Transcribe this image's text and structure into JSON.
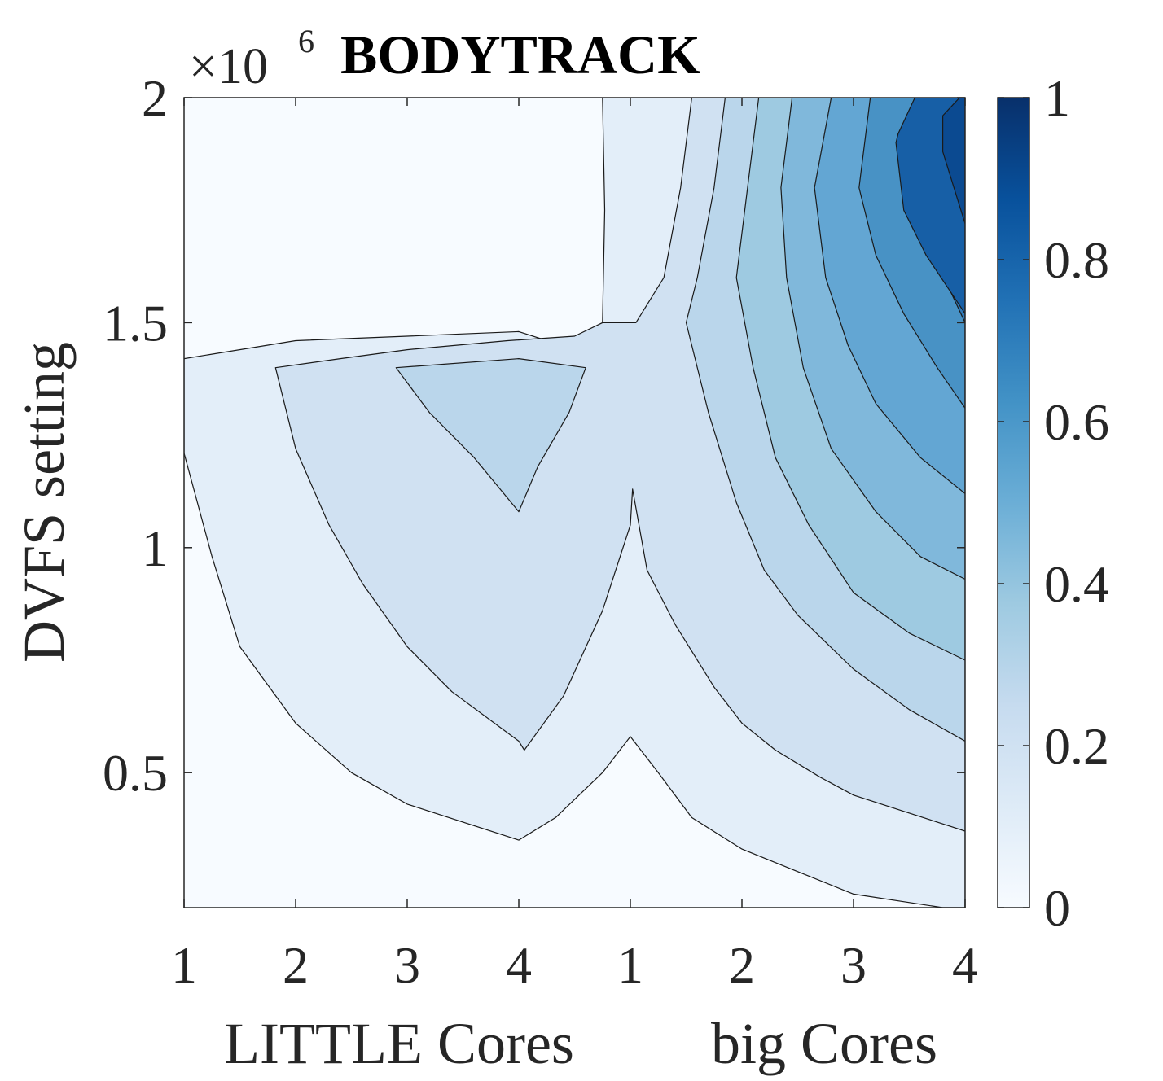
{
  "chart_data": {
    "type": "contour",
    "title": "BODYTRACK",
    "ylabel": "DVFS setting",
    "y_exponent_base": "×10",
    "y_exponent_power": "6",
    "xlabel_little": "LITTLE Cores",
    "xlabel_big": "big Cores",
    "x_ticks": [
      {
        "label": "1",
        "group": "LITTLE",
        "cores": 1
      },
      {
        "label": "2",
        "group": "LITTLE",
        "cores": 2
      },
      {
        "label": "3",
        "group": "LITTLE",
        "cores": 3
      },
      {
        "label": "4",
        "group": "LITTLE",
        "cores": 4
      },
      {
        "label": "1",
        "group": "big",
        "cores": 1
      },
      {
        "label": "2",
        "group": "big",
        "cores": 2
      },
      {
        "label": "3",
        "group": "big",
        "cores": 3
      },
      {
        "label": "4",
        "group": "big",
        "cores": 4
      }
    ],
    "xlim": [
      1,
      8
    ],
    "y_ticks": [
      {
        "value": 0.5,
        "label": "0.5"
      },
      {
        "value": 1.0,
        "label": "1"
      },
      {
        "value": 1.5,
        "label": "1.5"
      },
      {
        "value": 2.0,
        "label": "2"
      }
    ],
    "ylim": [
      0.2,
      2.0
    ],
    "colorbar": {
      "ticks": [
        {
          "value": 0,
          "label": "0"
        },
        {
          "value": 0.2,
          "label": "0.2"
        },
        {
          "value": 0.4,
          "label": "0.4"
        },
        {
          "value": 0.6,
          "label": "0.6"
        },
        {
          "value": 0.8,
          "label": "0.8"
        },
        {
          "value": 1,
          "label": "1"
        }
      ],
      "range": [
        0,
        1
      ],
      "colormap": "Blues"
    },
    "contour_levels": [
      0.1,
      0.2,
      0.3,
      0.4,
      0.5,
      0.6,
      0.7,
      0.8,
      0.9
    ],
    "regions": [
      {
        "level": 0.0,
        "color": "#f7fbff",
        "polygon": [
          [
            1,
            0.2
          ],
          [
            8,
            0.2
          ],
          [
            8,
            2.0
          ],
          [
            1,
            2.0
          ]
        ]
      },
      {
        "level": 0.1,
        "color": "#e3eef9",
        "polygon": [
          [
            1,
            1.21
          ],
          [
            1.25,
            0.98
          ],
          [
            1.5,
            0.78
          ],
          [
            2,
            0.61
          ],
          [
            2.5,
            0.5
          ],
          [
            3,
            0.43
          ],
          [
            4,
            0.35
          ],
          [
            4.33,
            0.4
          ],
          [
            4.75,
            0.5
          ],
          [
            5,
            0.58
          ],
          [
            5.25,
            0.5
          ],
          [
            5.55,
            0.4
          ],
          [
            6,
            0.33
          ],
          [
            6.5,
            0.28
          ],
          [
            7,
            0.23
          ],
          [
            7.8,
            0.2
          ],
          [
            8,
            0.2
          ],
          [
            8,
            2.0
          ],
          [
            4.75,
            2.0
          ],
          [
            4.77,
            1.75
          ],
          [
            4.75,
            1.5
          ],
          [
            4.38,
            1.45
          ],
          [
            4.0,
            1.48
          ],
          [
            3.0,
            1.47
          ],
          [
            2.0,
            1.46
          ],
          [
            1,
            1.42
          ]
        ]
      },
      {
        "level": 0.2,
        "color": "#d0e1f2",
        "polygon": [
          [
            1.82,
            1.4
          ],
          [
            2,
            1.22
          ],
          [
            2.3,
            1.05
          ],
          [
            2.6,
            0.92
          ],
          [
            3,
            0.78
          ],
          [
            3.4,
            0.68
          ],
          [
            4,
            0.57
          ],
          [
            4.05,
            0.55
          ],
          [
            4.4,
            0.67
          ],
          [
            4.75,
            0.86
          ],
          [
            5,
            1.05
          ],
          [
            5.02,
            1.13
          ],
          [
            5.15,
            0.95
          ],
          [
            5.4,
            0.83
          ],
          [
            5.75,
            0.69
          ],
          [
            6,
            0.61
          ],
          [
            6.3,
            0.55
          ],
          [
            6.7,
            0.49
          ],
          [
            7,
            0.45
          ],
          [
            7.5,
            0.41
          ],
          [
            8,
            0.37
          ],
          [
            8,
            2.0
          ],
          [
            5.55,
            2.0
          ],
          [
            5.45,
            1.8
          ],
          [
            5.3,
            1.6
          ],
          [
            5.05,
            1.5
          ],
          [
            4.75,
            1.5
          ],
          [
            4.5,
            1.47
          ],
          [
            3.9,
            1.46
          ],
          [
            3.0,
            1.44
          ],
          [
            2.4,
            1.42
          ]
        ]
      },
      {
        "level": 0.3,
        "color": "#bad6eb",
        "polygon": [
          [
            2.9,
            1.4
          ],
          [
            3.2,
            1.3
          ],
          [
            3.6,
            1.2
          ],
          [
            4.0,
            1.08
          ],
          [
            4.17,
            1.18
          ],
          [
            4.45,
            1.3
          ],
          [
            4.6,
            1.4
          ],
          [
            4.0,
            1.42
          ]
        ]
      },
      {
        "level": 0.3,
        "color": "#bad6eb",
        "polygon": [
          [
            5.85,
            2.0
          ],
          [
            5.75,
            1.8
          ],
          [
            5.6,
            1.6
          ],
          [
            5.5,
            1.5
          ],
          [
            5.7,
            1.3
          ],
          [
            5.95,
            1.1
          ],
          [
            6.2,
            0.95
          ],
          [
            6.5,
            0.85
          ],
          [
            7,
            0.73
          ],
          [
            7.5,
            0.64
          ],
          [
            8,
            0.57
          ],
          [
            8,
            2.0
          ]
        ]
      },
      {
        "level": 0.4,
        "color": "#9ecae1",
        "polygon": [
          [
            6.15,
            2.0
          ],
          [
            6.05,
            1.8
          ],
          [
            5.95,
            1.6
          ],
          [
            6.1,
            1.4
          ],
          [
            6.3,
            1.2
          ],
          [
            6.6,
            1.05
          ],
          [
            7,
            0.9
          ],
          [
            7.5,
            0.81
          ],
          [
            8,
            0.75
          ],
          [
            8,
            2.0
          ]
        ]
      },
      {
        "level": 0.5,
        "color": "#80b8db",
        "polygon": [
          [
            6.45,
            2.0
          ],
          [
            6.35,
            1.8
          ],
          [
            6.4,
            1.6
          ],
          [
            6.55,
            1.4
          ],
          [
            6.8,
            1.22
          ],
          [
            7.2,
            1.08
          ],
          [
            7.6,
            0.98
          ],
          [
            8,
            0.93
          ],
          [
            8,
            2.0
          ]
        ]
      },
      {
        "level": 0.6,
        "color": "#63a6d3",
        "polygon": [
          [
            6.8,
            2.0
          ],
          [
            6.65,
            1.8
          ],
          [
            6.75,
            1.6
          ],
          [
            6.95,
            1.45
          ],
          [
            7.2,
            1.32
          ],
          [
            7.6,
            1.2
          ],
          [
            8,
            1.12
          ],
          [
            8,
            2.0
          ]
        ]
      },
      {
        "level": 0.7,
        "color": "#4892c5",
        "polygon": [
          [
            7.15,
            2.0
          ],
          [
            7.05,
            1.8
          ],
          [
            7.2,
            1.65
          ],
          [
            7.45,
            1.52
          ],
          [
            7.75,
            1.4
          ],
          [
            8,
            1.31
          ],
          [
            8,
            2.0
          ]
        ]
      },
      {
        "level": 0.8,
        "color": "#2f7ab9",
        "polygon": [
          [
            7.6,
            2.0
          ],
          [
            7.45,
            1.82
          ],
          [
            7.6,
            1.7
          ],
          [
            7.85,
            1.58
          ],
          [
            8,
            1.5
          ],
          [
            8,
            2.0
          ]
        ]
      },
      {
        "level": 0.9,
        "color": "#175fa6",
        "polygon": [
          [
            7.95,
            2.0
          ],
          [
            7.9,
            1.9
          ],
          [
            8,
            1.84
          ],
          [
            8,
            2.0
          ]
        ]
      },
      {
        "level": 0.9,
        "color": "#175fa6",
        "polygon": [
          [
            7.55,
            2.0
          ],
          [
            7.4,
            1.92
          ],
          [
            7.38,
            1.9
          ],
          [
            7.45,
            1.75
          ],
          [
            7.65,
            1.65
          ],
          [
            8,
            1.52
          ],
          [
            8,
            2.0
          ]
        ]
      },
      {
        "level": 1.0,
        "color": "#0b4a91",
        "polygon": [
          [
            8,
            2.0
          ],
          [
            7.95,
            2.0
          ],
          [
            7.8,
            1.96
          ],
          [
            7.8,
            1.88
          ],
          [
            7.9,
            1.8
          ],
          [
            8,
            1.72
          ]
        ]
      }
    ],
    "grid": false
  }
}
